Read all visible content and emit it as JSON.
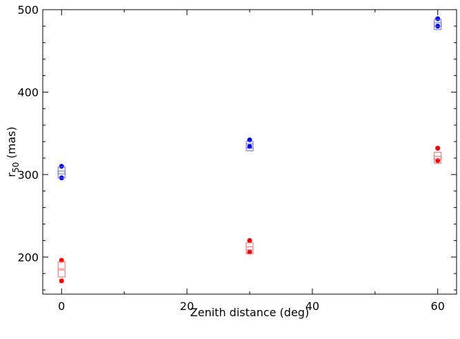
{
  "chart_data": {
    "type": "scatter",
    "title": "",
    "xlabel": "Zenith distance (deg)",
    "ylabel": {
      "base": "r",
      "subscript": "50",
      "suffix": " (mas)"
    },
    "xlim": [
      -3,
      63
    ],
    "ylim": [
      155,
      500
    ],
    "x_ticks": [
      0,
      20,
      40,
      60
    ],
    "x_minor_ticks": [
      10,
      30,
      50
    ],
    "y_ticks": [
      200,
      300,
      400,
      500
    ],
    "grid": false,
    "legend": "none",
    "series": [
      {
        "color": "#0000ff",
        "marker": "filled-circle",
        "points": [
          {
            "x": 0,
            "y": 310
          },
          {
            "x": 0,
            "y": 296
          },
          {
            "x": 30,
            "y": 342
          },
          {
            "x": 30,
            "y": 334
          },
          {
            "x": 60,
            "y": 489
          },
          {
            "x": 60,
            "y": 480
          }
        ]
      },
      {
        "color": "#6666ff",
        "marker": "open-square",
        "points": [
          {
            "x": 0,
            "y": 305
          },
          {
            "x": 0,
            "y": 300
          },
          {
            "x": 30,
            "y": 336
          },
          {
            "x": 30,
            "y": 333
          },
          {
            "x": 60,
            "y": 484
          },
          {
            "x": 60,
            "y": 480
          }
        ]
      },
      {
        "color": "#ff0000",
        "marker": "filled-circle",
        "points": [
          {
            "x": 0,
            "y": 196
          },
          {
            "x": 0,
            "y": 171
          },
          {
            "x": 30,
            "y": 220
          },
          {
            "x": 30,
            "y": 206
          },
          {
            "x": 60,
            "y": 332
          },
          {
            "x": 60,
            "y": 317
          }
        ]
      },
      {
        "color": "#ff6666",
        "marker": "open-square",
        "points": [
          {
            "x": 0,
            "y": 190
          },
          {
            "x": 0,
            "y": 180
          },
          {
            "x": 30,
            "y": 213
          },
          {
            "x": 30,
            "y": 208
          },
          {
            "x": 60,
            "y": 323
          },
          {
            "x": 60,
            "y": 318
          }
        ]
      }
    ]
  }
}
